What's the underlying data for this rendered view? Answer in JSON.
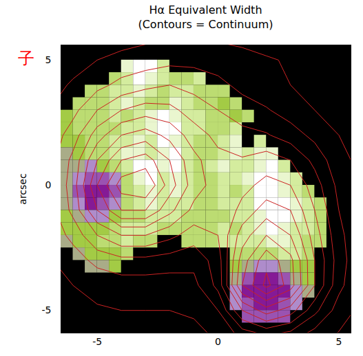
{
  "chart_data": {
    "type": "heatmap",
    "title": "Hα Equivalent Width",
    "subtitle": "(Contours = Continuum)",
    "y_label": "arcsec",
    "xlim": [
      -6.5,
      5.5
    ],
    "ylim": [
      -5.9,
      5.6
    ],
    "xticks": [
      -5,
      0,
      5
    ],
    "yticks": [
      -5,
      0,
      5
    ],
    "zlim": [
      0,
      8
    ],
    "cells": {
      "x0": -6.5,
      "y0": 5,
      "step": 0.5,
      "values": [
        [
          null,
          null,
          null,
          null,
          null,
          7,
          8,
          8,
          6,
          null,
          null,
          null,
          null,
          null,
          null,
          null,
          null,
          null,
          null,
          null,
          null,
          null
        ],
        [
          null,
          null,
          null,
          null,
          5,
          6,
          8,
          7,
          6,
          5,
          5,
          6,
          null,
          null,
          null,
          null,
          null,
          null,
          null,
          null,
          null,
          null
        ],
        [
          null,
          null,
          5,
          5,
          6,
          6,
          7,
          6,
          5,
          6,
          6,
          5,
          5,
          5,
          null,
          null,
          null,
          null,
          null,
          null,
          null,
          null
        ],
        [
          null,
          5,
          5,
          5,
          6,
          7,
          6,
          5,
          5,
          7,
          6,
          5,
          5,
          4,
          5,
          null,
          null,
          null,
          null,
          null,
          null,
          null
        ],
        [
          4,
          5,
          5,
          5,
          6,
          5,
          6,
          7,
          8,
          7,
          6,
          6,
          5,
          5,
          4,
          5,
          null,
          null,
          null,
          null,
          null,
          null
        ],
        [
          4,
          5,
          5,
          5,
          5,
          6,
          6,
          7,
          8,
          8,
          6,
          6,
          5,
          5,
          6,
          null,
          null,
          null,
          null,
          null,
          null,
          null
        ],
        [
          4,
          4,
          5,
          5,
          6,
          6,
          7,
          6,
          8,
          7,
          6,
          5,
          5,
          6,
          7,
          null,
          6,
          null,
          null,
          null,
          null,
          null
        ],
        [
          3,
          4,
          5,
          5,
          6,
          7,
          7,
          6,
          7,
          8,
          6,
          5,
          5,
          6,
          7,
          6,
          7,
          7,
          null,
          null,
          null,
          null
        ],
        [
          3,
          3,
          2,
          4,
          5,
          6,
          8,
          8,
          7,
          8,
          6,
          5,
          6,
          7,
          6,
          6,
          7,
          8,
          6,
          null,
          null,
          null
        ],
        [
          3,
          2,
          1,
          1,
          2,
          5,
          7,
          8,
          6,
          7,
          6,
          5,
          5,
          6,
          6,
          7,
          8,
          8,
          7,
          6,
          null,
          null
        ],
        [
          3,
          1,
          0,
          0,
          1,
          5,
          6,
          7,
          6,
          7,
          6,
          5,
          5,
          6,
          5,
          6,
          8,
          8,
          7,
          6,
          5,
          null
        ],
        [
          3,
          2,
          0,
          1,
          2,
          5,
          6,
          7,
          6,
          6,
          6,
          5,
          5,
          6,
          6,
          6,
          8,
          8,
          8,
          7,
          6,
          5
        ],
        [
          4,
          3,
          2,
          2,
          4,
          5,
          5,
          6,
          6,
          6,
          5,
          5,
          5,
          5,
          6,
          6,
          7,
          8,
          8,
          7,
          6,
          5
        ],
        [
          4,
          4,
          4,
          4,
          5,
          6,
          6,
          6,
          5,
          5,
          5,
          5,
          5,
          6,
          5,
          6,
          7,
          8,
          7,
          6,
          6,
          5
        ],
        [
          3,
          4,
          4,
          5,
          5,
          6,
          5,
          5,
          null,
          null,
          5,
          5,
          5,
          6,
          6,
          6,
          6,
          7,
          7,
          6,
          5,
          5
        ],
        [
          null,
          3,
          4,
          4,
          4,
          5,
          null,
          null,
          null,
          null,
          null,
          null,
          null,
          null,
          5,
          5,
          5,
          5,
          6,
          6,
          5,
          null
        ],
        [
          null,
          null,
          3,
          3,
          4,
          null,
          null,
          null,
          null,
          null,
          null,
          null,
          null,
          null,
          4,
          3,
          2,
          2,
          3,
          4,
          4,
          null
        ],
        [
          null,
          null,
          null,
          null,
          null,
          null,
          null,
          null,
          null,
          null,
          null,
          null,
          null,
          null,
          3,
          1,
          0,
          0,
          1,
          3,
          4,
          null
        ],
        [
          null,
          null,
          null,
          null,
          null,
          null,
          null,
          null,
          null,
          null,
          null,
          null,
          null,
          null,
          2,
          0,
          0,
          0,
          0,
          2,
          3,
          null
        ],
        [
          null,
          null,
          null,
          null,
          null,
          null,
          null,
          null,
          null,
          null,
          null,
          null,
          null,
          null,
          2,
          1,
          0,
          0,
          1,
          2,
          null,
          null
        ],
        [
          null,
          null,
          null,
          null,
          null,
          null,
          null,
          null,
          null,
          null,
          null,
          null,
          null,
          null,
          null,
          1,
          1,
          1,
          1,
          null,
          null,
          null
        ]
      ]
    },
    "contours": {
      "x0": -7,
      "y0": 6,
      "step": 1,
      "color": "#cc2222",
      "levels": [
        5,
        15,
        25,
        35,
        45,
        55,
        65,
        75,
        85,
        95
      ],
      "values": [
        [
          0,
          0,
          0,
          0,
          2,
          3,
          3,
          3,
          2,
          0,
          0,
          0,
          0,
          0
        ],
        [
          0,
          2,
          5,
          8,
          10,
          12,
          12,
          10,
          8,
          6,
          4,
          2,
          0,
          0
        ],
        [
          2,
          6,
          12,
          18,
          22,
          25,
          22,
          18,
          12,
          8,
          5,
          2,
          0,
          0
        ],
        [
          5,
          12,
          25,
          35,
          40,
          38,
          30,
          25,
          20,
          16,
          10,
          5,
          2,
          0
        ],
        [
          8,
          20,
          40,
          55,
          60,
          52,
          40,
          32,
          28,
          26,
          20,
          12,
          5,
          0
        ],
        [
          10,
          28,
          55,
          75,
          80,
          65,
          48,
          38,
          36,
          40,
          35,
          22,
          8,
          2
        ],
        [
          12,
          30,
          65,
          90,
          95,
          70,
          50,
          40,
          42,
          48,
          45,
          30,
          12,
          3
        ],
        [
          10,
          28,
          55,
          75,
          75,
          58,
          42,
          36,
          48,
          60,
          55,
          35,
          15,
          4
        ],
        [
          8,
          18,
          35,
          45,
          45,
          38,
          30,
          35,
          60,
          75,
          65,
          40,
          18,
          5
        ],
        [
          4,
          10,
          18,
          22,
          22,
          20,
          18,
          30,
          70,
          92,
          78,
          45,
          20,
          5
        ],
        [
          2,
          5,
          8,
          10,
          10,
          10,
          12,
          28,
          75,
          98,
          80,
          45,
          18,
          4
        ],
        [
          0,
          2,
          4,
          5,
          5,
          5,
          6,
          15,
          45,
          60,
          50,
          28,
          10,
          2
        ],
        [
          0,
          0,
          0,
          2,
          2,
          2,
          3,
          6,
          18,
          25,
          20,
          10,
          4,
          0
        ]
      ]
    },
    "annotations": [
      {
        "text": "子",
        "color": "red"
      }
    ]
  }
}
